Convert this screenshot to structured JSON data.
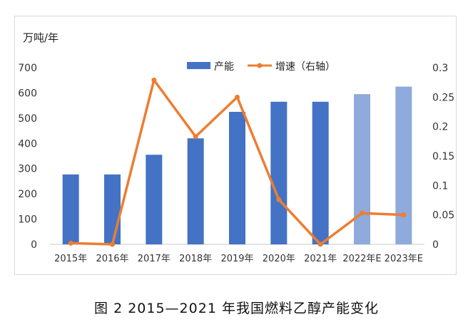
{
  "chart_data": {
    "type": "bar+line",
    "categories": [
      "2015年",
      "2016年",
      "2017年",
      "2018年",
      "2019年",
      "2020年",
      "2021年",
      "2022年E",
      "2023年E"
    ],
    "series": [
      {
        "name": "产能",
        "type": "bar",
        "axis": "left",
        "values": [
          277,
          277,
          355,
          420,
          525,
          565,
          565,
          595,
          625
        ],
        "colors": [
          "#4472c4",
          "#4472c4",
          "#4472c4",
          "#4472c4",
          "#4472c4",
          "#4472c4",
          "#4472c4",
          "#8faadc",
          "#8faadc"
        ]
      },
      {
        "name": "增速（右轴）",
        "type": "line",
        "axis": "right",
        "values": [
          0.002,
          0.0,
          0.279,
          0.183,
          0.25,
          0.076,
          0.0,
          0.053,
          0.05
        ],
        "color": "#ed7d31"
      }
    ],
    "y_left": {
      "unit": "万吨/年",
      "range": [
        0,
        700
      ],
      "ticks": [
        "0",
        "100",
        "200",
        "300",
        "400",
        "500",
        "600",
        "700"
      ]
    },
    "y_right": {
      "range": [
        0,
        0.3
      ],
      "ticks": [
        "0",
        "0.05",
        "0.1",
        "0.15",
        "0.2",
        "0.25",
        "0.3"
      ]
    },
    "grid": false,
    "legend": "top-center"
  },
  "caption": "图 2  2015—2021 年我国燃料乙醇产能变化"
}
